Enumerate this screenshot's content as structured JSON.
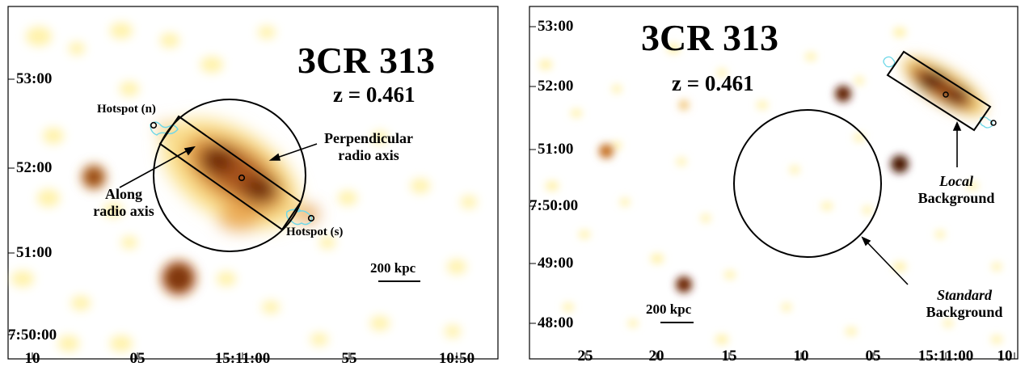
{
  "left_panel": {
    "title": "3CR 313",
    "redshift": "z = 0.461",
    "scale_bar": "200 kpc",
    "annotations": {
      "hotspot_n": "Hotspot (n)",
      "hotspot_s": "Hotspot (s)",
      "perpendicular_line1": "Perpendicular",
      "perpendicular_line2": "radio axis",
      "along_line1": "Along",
      "along_line2": "radio axis"
    },
    "y_ticks": [
      "53:00",
      "52:00",
      "51:00",
      "7:50:00"
    ],
    "x_ticks": [
      "10",
      "05",
      "15:11:00",
      "55",
      "10:50"
    ]
  },
  "right_panel": {
    "title": "3CR 313",
    "redshift": "z = 0.461",
    "scale_bar": "200 kpc",
    "annotations": {
      "local_line1": "Local",
      "local_line2": "Background",
      "standard_line1": "Standard",
      "standard_line2": "Background"
    },
    "y_ticks": [
      "53:00",
      "52:00",
      "51:00",
      "7:50:00",
      "49:00",
      "48:00"
    ],
    "x_ticks": [
      "25",
      "20",
      "15",
      "10",
      "05",
      "15:11:00",
      "10"
    ]
  },
  "colors": {
    "faint_emission": "#fff0a8",
    "diffuse_emission": "#d07a28",
    "core_emission": "#5a1a00",
    "radio_contours": "#6fd8e8",
    "annotation": "#000000"
  }
}
